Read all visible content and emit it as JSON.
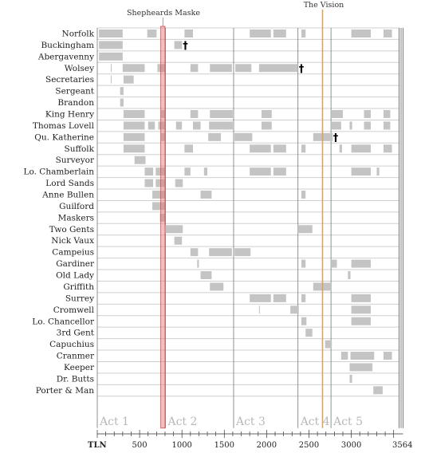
{
  "chart_data": {
    "type": "timeline",
    "x_axis": {
      "label": "TLN",
      "range": [
        0,
        3564
      ],
      "ticks": [
        500,
        1000,
        1500,
        2000,
        2500,
        3000
      ],
      "end_label": "3564"
    },
    "annotations": {
      "shepherds_maske": {
        "label": "Shepheards Maske",
        "start": 750,
        "end": 800
      },
      "the_vision": {
        "label": "The Vision",
        "tln": 2660
      }
    },
    "acts": [
      {
        "label": "Act 1",
        "start": 0
      },
      {
        "label": "Act 2",
        "start": 805
      },
      {
        "label": "Act 3",
        "start": 1610
      },
      {
        "label": "Act 4",
        "start": 2370
      },
      {
        "label": "Act 5",
        "start": 2760
      }
    ],
    "death_marker": "†",
    "rows": [
      {
        "name": "Norfolk",
        "spans": [
          [
            20,
            300
          ],
          [
            590,
            700
          ],
          [
            1030,
            1130
          ],
          [
            1800,
            2050
          ],
          [
            2080,
            2230
          ],
          [
            2410,
            2460
          ],
          [
            3000,
            3230
          ],
          [
            3380,
            3480
          ]
        ]
      },
      {
        "name": "Buckingham",
        "spans": [
          [
            20,
            300
          ],
          [
            910,
            1000
          ]
        ],
        "death": 1010
      },
      {
        "name": "Abergavenny",
        "spans": [
          [
            20,
            300
          ]
        ]
      },
      {
        "name": "Wolsey",
        "spans": [
          [
            160,
            170
          ],
          [
            300,
            560
          ],
          [
            710,
            800
          ],
          [
            1100,
            1190
          ],
          [
            1330,
            1590
          ],
          [
            1630,
            1820
          ],
          [
            1910,
            2370
          ]
        ],
        "death": 2380
      },
      {
        "name": "Secretaries",
        "spans": [
          [
            160,
            170
          ],
          [
            310,
            430
          ]
        ]
      },
      {
        "name": "Sergeant",
        "spans": [
          [
            270,
            310
          ]
        ]
      },
      {
        "name": "Brandon",
        "spans": [
          [
            270,
            310
          ]
        ]
      },
      {
        "name": "King Henry",
        "spans": [
          [
            310,
            560
          ],
          [
            750,
            800
          ],
          [
            1100,
            1190
          ],
          [
            1330,
            1600
          ],
          [
            1940,
            2060
          ],
          [
            2760,
            2900
          ],
          [
            3150,
            3230
          ],
          [
            3380,
            3460
          ]
        ]
      },
      {
        "name": "Thomas Lovell",
        "spans": [
          [
            310,
            560
          ],
          [
            600,
            680
          ],
          [
            720,
            800
          ],
          [
            930,
            1000
          ],
          [
            1130,
            1220
          ],
          [
            1320,
            1600
          ],
          [
            1940,
            2060
          ],
          [
            2760,
            2880
          ],
          [
            2980,
            3010
          ],
          [
            3150,
            3230
          ],
          [
            3380,
            3460
          ]
        ]
      },
      {
        "name": "Qu. Katherine",
        "spans": [
          [
            310,
            560
          ],
          [
            750,
            800
          ],
          [
            1310,
            1460
          ],
          [
            1620,
            1830
          ],
          [
            2550,
            2780
          ]
        ],
        "death": 2785
      },
      {
        "name": "Suffolk",
        "spans": [
          [
            310,
            560
          ],
          [
            1030,
            1130
          ],
          [
            1800,
            2050
          ],
          [
            2080,
            2230
          ],
          [
            2410,
            2460
          ],
          [
            2860,
            2890
          ],
          [
            3000,
            3230
          ],
          [
            3380,
            3480
          ]
        ]
      },
      {
        "name": "Surveyor",
        "spans": [
          [
            440,
            570
          ]
        ]
      },
      {
        "name": "Lo. Chamberlain",
        "spans": [
          [
            560,
            660
          ],
          [
            690,
            800
          ],
          [
            1030,
            1100
          ],
          [
            1260,
            1300
          ],
          [
            1800,
            2050
          ],
          [
            2080,
            2230
          ],
          [
            3000,
            3230
          ],
          [
            3300,
            3330
          ]
        ]
      },
      {
        "name": "Lord Sands",
        "spans": [
          [
            560,
            660
          ],
          [
            690,
            800
          ],
          [
            920,
            1010
          ]
        ]
      },
      {
        "name": "Anne Bullen",
        "spans": [
          [
            650,
            800
          ],
          [
            1220,
            1350
          ],
          [
            2410,
            2460
          ]
        ]
      },
      {
        "name": "Guilford",
        "spans": [
          [
            650,
            800
          ]
        ]
      },
      {
        "name": "Maskers",
        "spans": [
          [
            740,
            800
          ]
        ]
      },
      {
        "name": "Two Gents",
        "spans": [
          [
            800,
            1010
          ],
          [
            2370,
            2540
          ]
        ]
      },
      {
        "name": "Nick Vaux",
        "spans": [
          [
            910,
            1000
          ]
        ]
      },
      {
        "name": "Campeius",
        "spans": [
          [
            1100,
            1190
          ],
          [
            1320,
            1590
          ],
          [
            1620,
            1810
          ]
        ]
      },
      {
        "name": "Gardiner",
        "spans": [
          [
            1180,
            1200
          ],
          [
            2410,
            2460
          ],
          [
            2760,
            2830
          ],
          [
            3000,
            3230
          ]
        ]
      },
      {
        "name": "Old Lady",
        "spans": [
          [
            1220,
            1350
          ],
          [
            2960,
            2990
          ]
        ]
      },
      {
        "name": "Griffith",
        "spans": [
          [
            1330,
            1490
          ],
          [
            2550,
            2760
          ]
        ]
      },
      {
        "name": "Surrey",
        "spans": [
          [
            1800,
            2050
          ],
          [
            2080,
            2230
          ],
          [
            2410,
            2460
          ],
          [
            3000,
            3230
          ]
        ]
      },
      {
        "name": "Cromwell",
        "spans": [
          [
            1910,
            1920
          ],
          [
            2280,
            2380
          ],
          [
            3000,
            3230
          ]
        ]
      },
      {
        "name": "Lo. Chancellor",
        "spans": [
          [
            2410,
            2470
          ],
          [
            3000,
            3230
          ]
        ]
      },
      {
        "name": "3rd Gent",
        "spans": [
          [
            2460,
            2540
          ]
        ]
      },
      {
        "name": "Capuchius",
        "spans": [
          [
            2690,
            2770
          ]
        ]
      },
      {
        "name": "Cranmer",
        "spans": [
          [
            2880,
            2960
          ],
          [
            2990,
            3270
          ],
          [
            3380,
            3480
          ]
        ]
      },
      {
        "name": "Keeper",
        "spans": [
          [
            2980,
            3250
          ]
        ]
      },
      {
        "name": "Dr. Butts",
        "spans": [
          [
            2980,
            3010
          ]
        ]
      },
      {
        "name": "Porter & Man",
        "spans": [
          [
            3260,
            3370
          ]
        ]
      }
    ]
  }
}
